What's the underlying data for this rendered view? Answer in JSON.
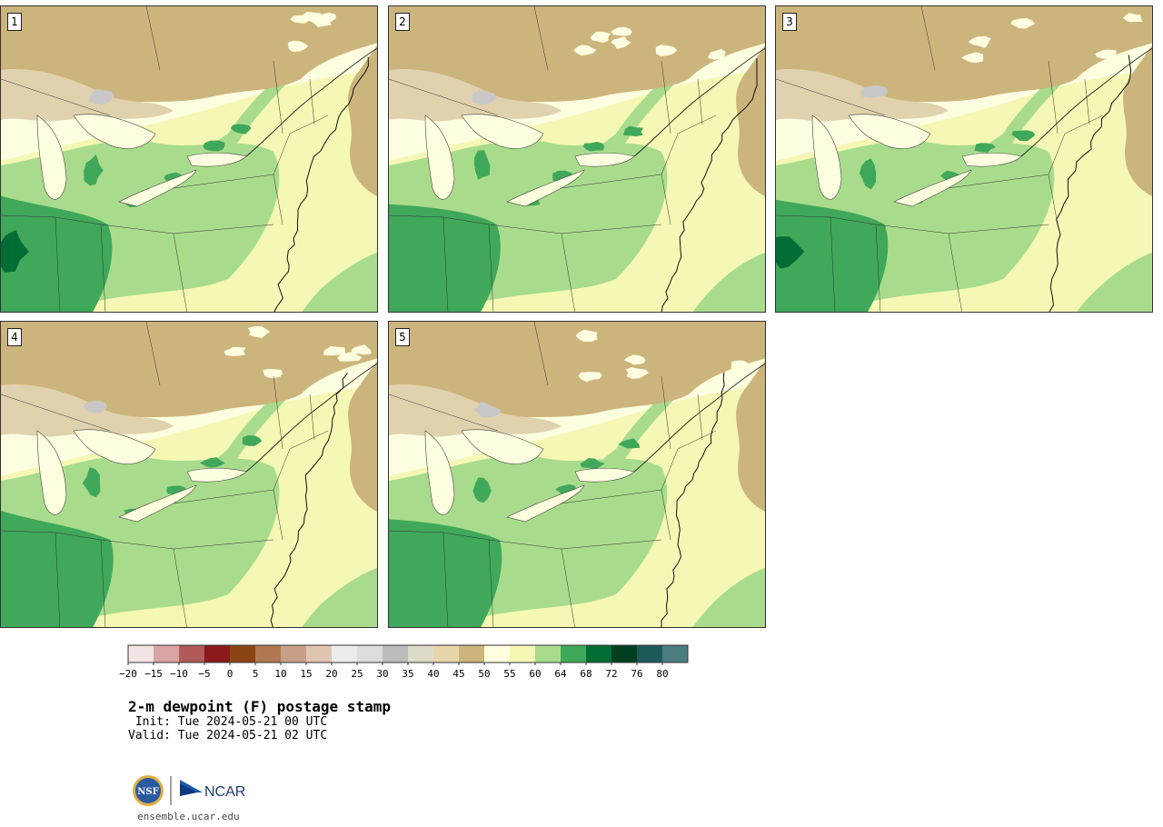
{
  "title": "2-m dewpoint (F) postage stamp",
  "init_line": " Init: Tue 2024-05-21 00 UTC",
  "valid_line": "Valid: Tue 2024-05-21 02 UTC",
  "footer_url": "ensemble.ucar.edu",
  "logos": {
    "nsf_text": "NSF",
    "ncar_text": "NCAR"
  },
  "members": [
    "1",
    "2",
    "3",
    "4",
    "5"
  ],
  "colorbar": {
    "ticks": [
      "−20",
      "−15",
      "−10",
      "−5",
      "0",
      "5",
      "10",
      "15",
      "20",
      "25",
      "30",
      "35",
      "40",
      "45",
      "50",
      "55",
      "60",
      "64",
      "68",
      "72",
      "76",
      "80"
    ],
    "colors": [
      "#f2e4e4",
      "#d9a4a4",
      "#b05a5a",
      "#8b1a1a",
      "#8b4513",
      "#b07850",
      "#c8a088",
      "#e2c4b4",
      "#ececec",
      "#dcdcdc",
      "#bcbcbc",
      "#dcdcc8",
      "#e6d6aa",
      "#ccb57c",
      "#fdfde0",
      "#f4f8b4",
      "#a8dc8c",
      "#40a85a",
      "#006e34",
      "#00401e",
      "#1c5a5a",
      "#4a7c80"
    ]
  },
  "map_colors": {
    "lt40": "#e0d2ae",
    "lt45": "#ccb57c",
    "lt50": "#fdfde0",
    "lt55": "#f4f8b4",
    "lt60": "#a8dc8c",
    "lt64": "#40a85a",
    "lt68": "#006e34",
    "lt30": "#c8c8c8"
  }
}
